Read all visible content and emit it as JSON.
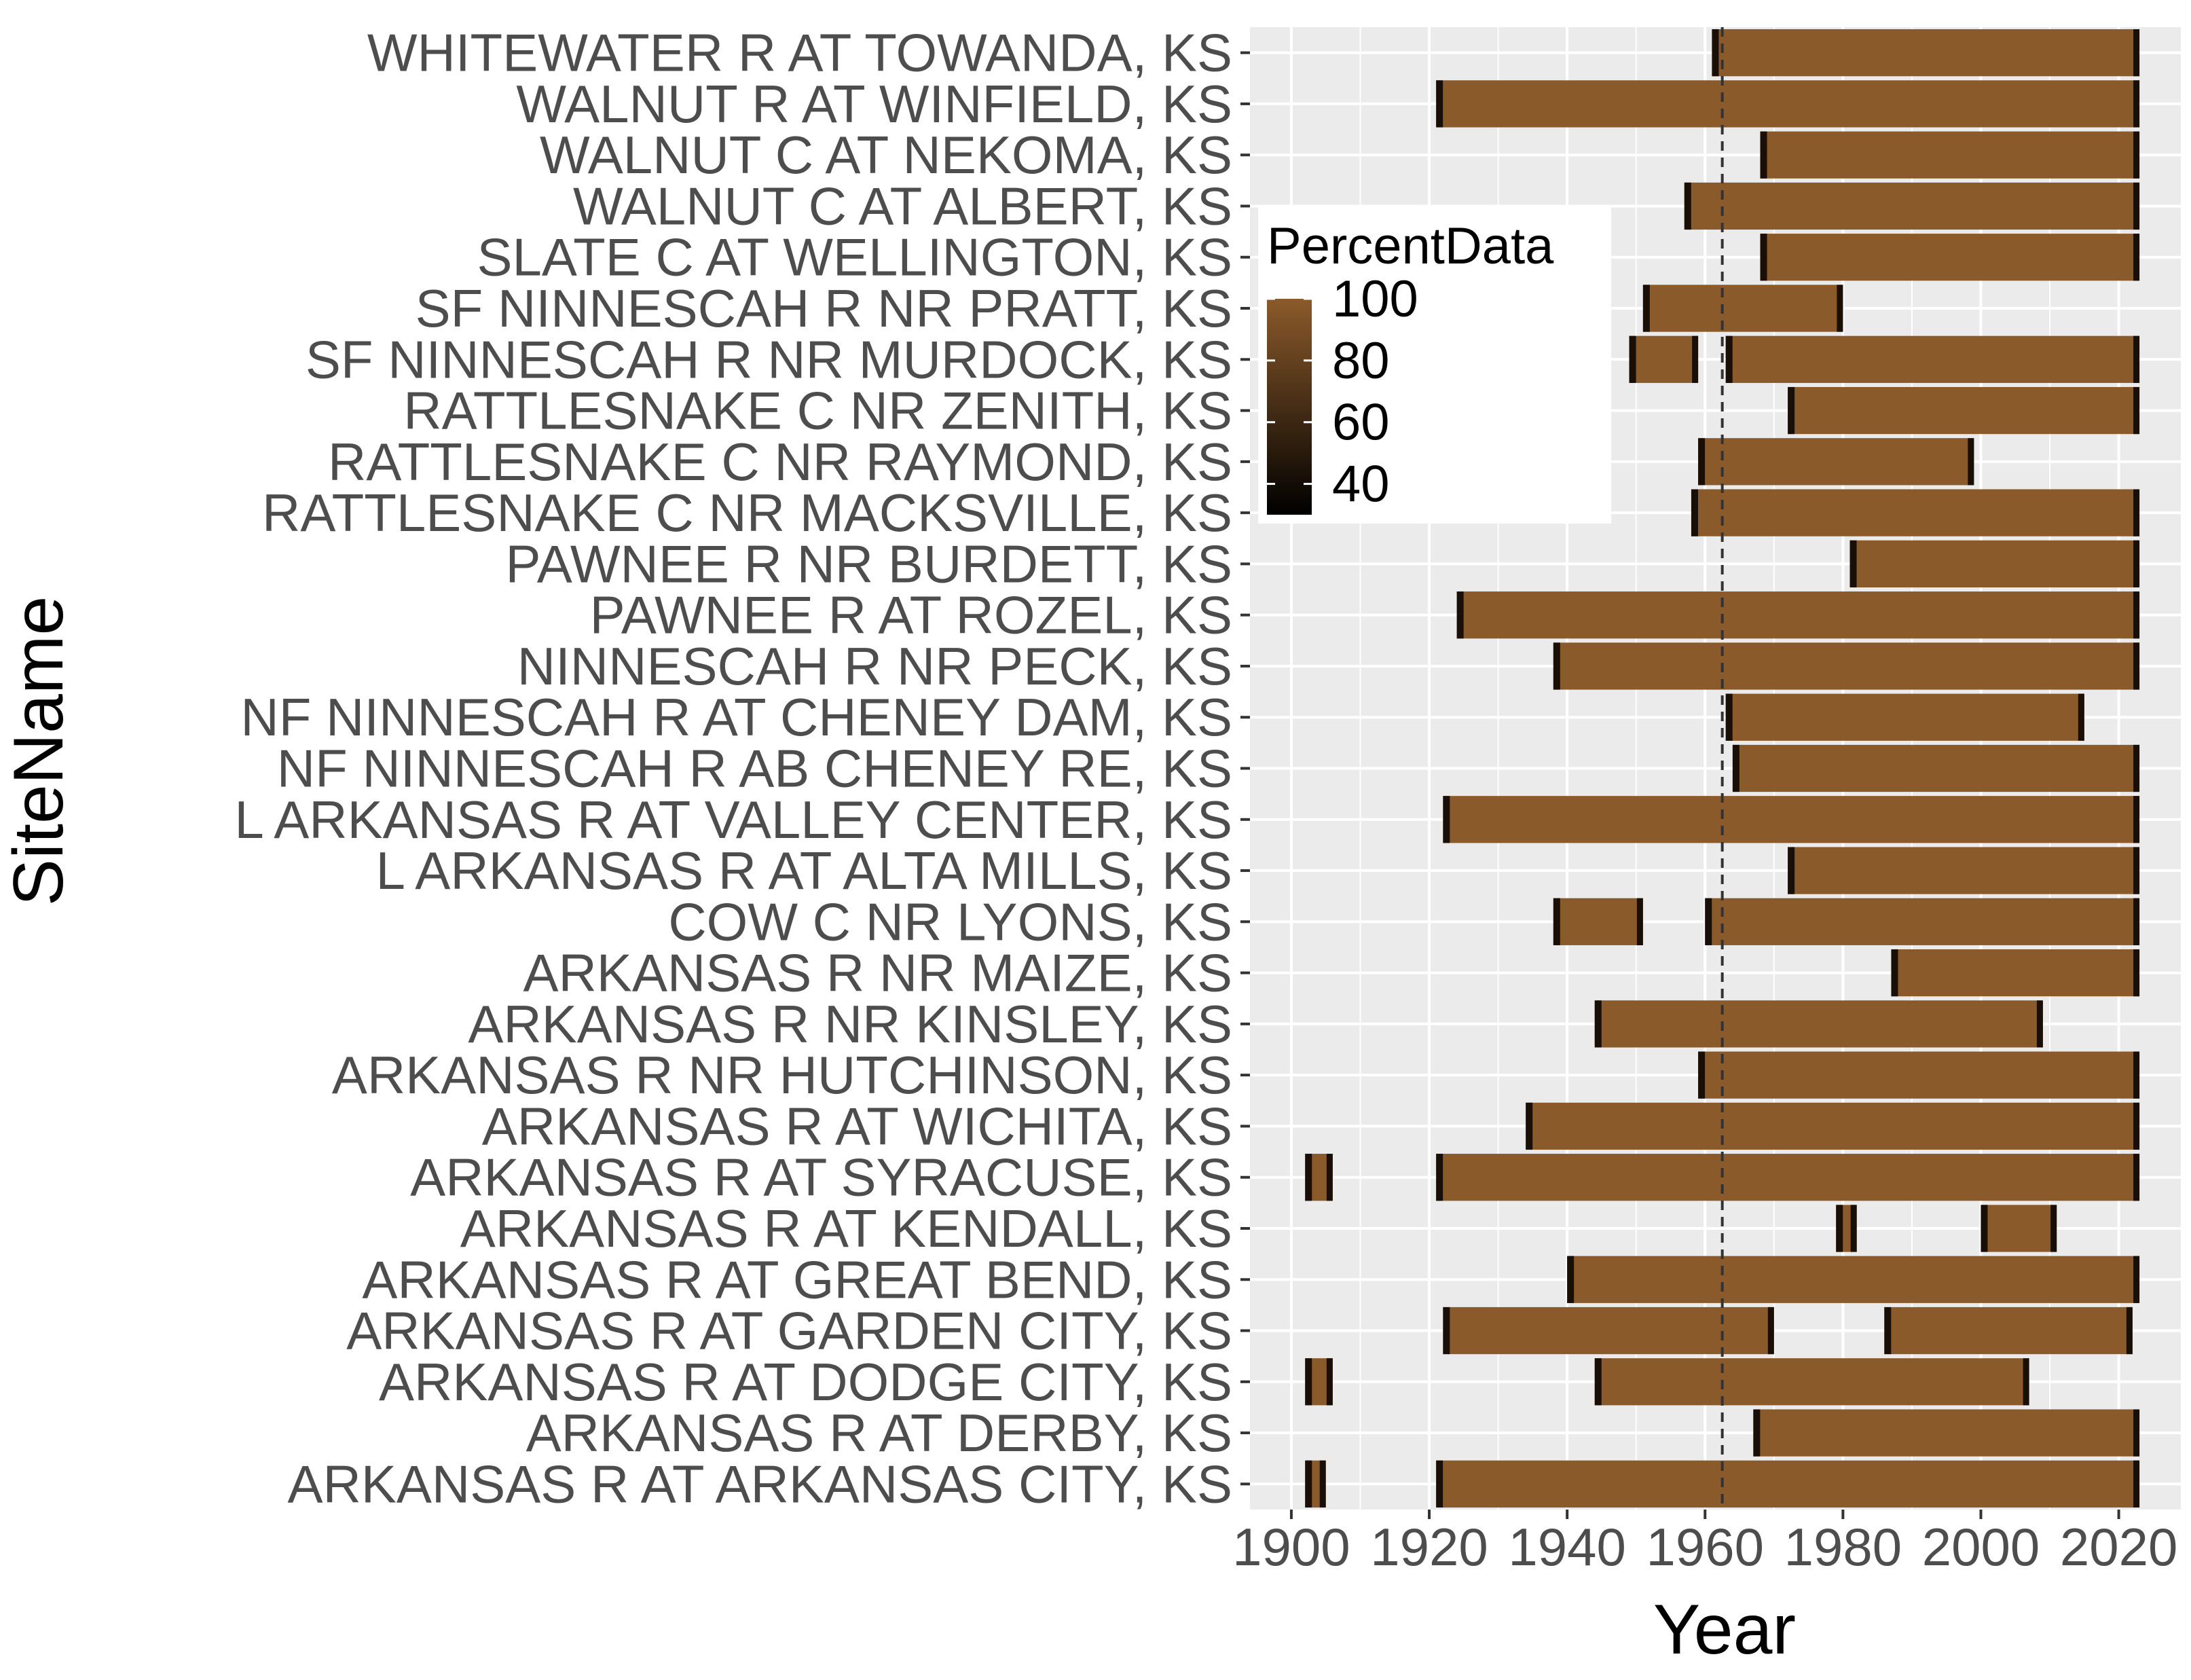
{
  "chart_data": {
    "type": "heatmap",
    "xlabel": "Year",
    "ylabel": "SiteName",
    "xlim": [
      1894,
      2029
    ],
    "x_ticks": [
      1900,
      1920,
      1940,
      1960,
      1980,
      2000,
      2020
    ],
    "reference_line_x": 1962.5,
    "grid": true,
    "legend": {
      "title": "PercentData",
      "placement": "top-left-inside",
      "ticks": [
        100,
        80,
        60,
        40
      ],
      "range": [
        30,
        100
      ],
      "color_low": "#000000",
      "color_high": "#8b5a2b"
    },
    "sites": [
      {
        "name": "WHITEWATER R AT TOWANDA, KS",
        "segments": [
          {
            "start": 1961,
            "end": 2023
          }
        ]
      },
      {
        "name": "WALNUT R AT WINFIELD, KS",
        "segments": [
          {
            "start": 1921,
            "end": 2023
          }
        ]
      },
      {
        "name": "WALNUT C AT NEKOMA, KS",
        "segments": [
          {
            "start": 1968,
            "end": 2023
          }
        ]
      },
      {
        "name": "WALNUT C AT ALBERT, KS",
        "segments": [
          {
            "start": 1957,
            "end": 2023
          }
        ]
      },
      {
        "name": "SLATE C AT WELLINGTON, KS",
        "segments": [
          {
            "start": 1968,
            "end": 2023
          }
        ]
      },
      {
        "name": "SF NINNESCAH R NR PRATT, KS",
        "segments": [
          {
            "start": 1951,
            "end": 1980
          }
        ]
      },
      {
        "name": "SF NINNESCAH R NR MURDOCK, KS",
        "segments": [
          {
            "start": 1949,
            "end": 1959
          },
          {
            "start": 1963,
            "end": 2023
          }
        ]
      },
      {
        "name": "RATTLESNAKE C NR ZENITH, KS",
        "segments": [
          {
            "start": 1972,
            "end": 2023
          }
        ]
      },
      {
        "name": "RATTLESNAKE C NR RAYMOND, KS",
        "segments": [
          {
            "start": 1959,
            "end": 1999
          }
        ]
      },
      {
        "name": "RATTLESNAKE C NR MACKSVILLE, KS",
        "segments": [
          {
            "start": 1958,
            "end": 2023
          }
        ]
      },
      {
        "name": "PAWNEE R NR BURDETT, KS",
        "segments": [
          {
            "start": 1981,
            "end": 2023
          }
        ]
      },
      {
        "name": "PAWNEE R AT ROZEL, KS",
        "segments": [
          {
            "start": 1924,
            "end": 2023
          }
        ]
      },
      {
        "name": "NINNESCAH R NR PECK, KS",
        "segments": [
          {
            "start": 1938,
            "end": 2023
          }
        ]
      },
      {
        "name": "NF NINNESCAH R AT CHENEY DAM, KS",
        "segments": [
          {
            "start": 1963,
            "end": 2015
          }
        ]
      },
      {
        "name": "NF NINNESCAH R AB CHENEY RE, KS",
        "segments": [
          {
            "start": 1964,
            "end": 2023
          }
        ]
      },
      {
        "name": "L ARKANSAS R AT VALLEY CENTER, KS",
        "segments": [
          {
            "start": 1922,
            "end": 2023
          }
        ]
      },
      {
        "name": "L ARKANSAS R AT ALTA MILLS, KS",
        "segments": [
          {
            "start": 1972,
            "end": 2023
          }
        ]
      },
      {
        "name": "COW C NR LYONS, KS",
        "segments": [
          {
            "start": 1938,
            "end": 1951
          },
          {
            "start": 1960,
            "end": 2023
          }
        ]
      },
      {
        "name": "ARKANSAS R NR MAIZE, KS",
        "segments": [
          {
            "start": 1987,
            "end": 2023
          }
        ]
      },
      {
        "name": "ARKANSAS R NR KINSLEY, KS",
        "segments": [
          {
            "start": 1944,
            "end": 2009
          }
        ]
      },
      {
        "name": "ARKANSAS R NR HUTCHINSON, KS",
        "segments": [
          {
            "start": 1959,
            "end": 2023
          }
        ]
      },
      {
        "name": "ARKANSAS R AT WICHITA, KS",
        "segments": [
          {
            "start": 1934,
            "end": 2023
          }
        ]
      },
      {
        "name": "ARKANSAS R AT SYRACUSE, KS",
        "segments": [
          {
            "start": 1902,
            "end": 1906
          },
          {
            "start": 1921,
            "end": 2023
          }
        ]
      },
      {
        "name": "ARKANSAS R AT KENDALL, KS",
        "segments": [
          {
            "start": 1979,
            "end": 1982
          },
          {
            "start": 2000,
            "end": 2011
          }
        ]
      },
      {
        "name": "ARKANSAS R AT GREAT BEND, KS",
        "segments": [
          {
            "start": 1940,
            "end": 2023
          }
        ]
      },
      {
        "name": "ARKANSAS R AT GARDEN CITY, KS",
        "segments": [
          {
            "start": 1922,
            "end": 1970
          },
          {
            "start": 1986,
            "end": 2022
          }
        ]
      },
      {
        "name": "ARKANSAS R AT DODGE CITY, KS",
        "segments": [
          {
            "start": 1902,
            "end": 1906
          },
          {
            "start": 1944,
            "end": 2007
          }
        ]
      },
      {
        "name": "ARKANSAS R AT DERBY, KS",
        "segments": [
          {
            "start": 1967,
            "end": 2023
          }
        ]
      },
      {
        "name": "ARKANSAS R AT ARKANSAS CITY, KS",
        "segments": [
          {
            "start": 1902,
            "end": 1905
          },
          {
            "start": 1921,
            "end": 2023
          }
        ]
      }
    ]
  }
}
